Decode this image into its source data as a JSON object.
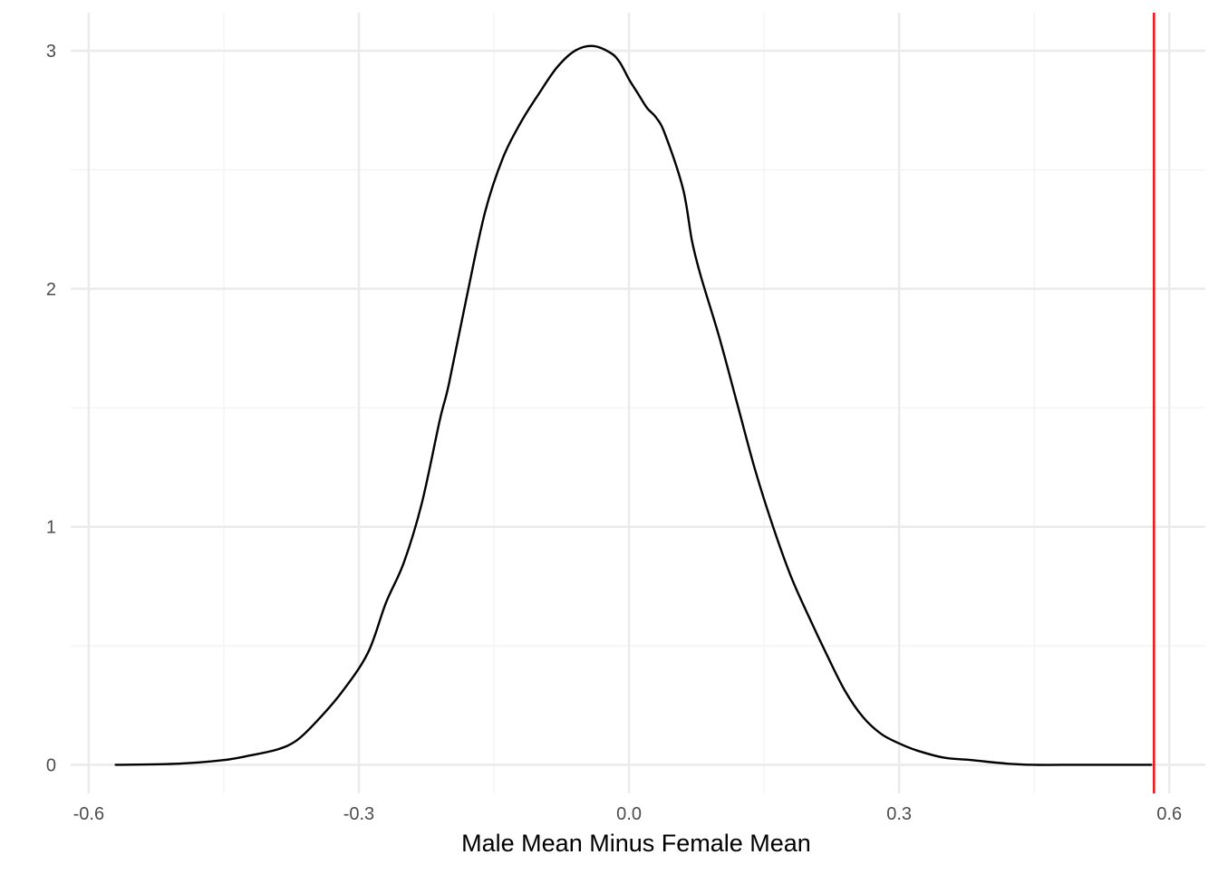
{
  "chart_data": {
    "type": "line",
    "title": "",
    "xlabel": "Male Mean Minus Female Mean",
    "ylabel": "",
    "xlim": [
      -0.62,
      0.64
    ],
    "ylim": [
      -0.12,
      3.16
    ],
    "x_ticks": [
      -0.6,
      -0.3,
      0.0,
      0.3,
      0.6
    ],
    "x_tick_labels": [
      "-0.6",
      "-0.3",
      "0.0",
      "0.3",
      "0.6"
    ],
    "x_minor_ticks": [
      -0.45,
      -0.15,
      0.15,
      0.45
    ],
    "y_ticks": [
      0,
      1,
      2,
      3
    ],
    "y_tick_labels": [
      "0",
      "1",
      "2",
      "3"
    ],
    "y_minor_ticks": [
      0.5,
      1.5,
      2.5
    ],
    "grid": true,
    "legend": "none",
    "colors": {
      "density_line": "#000000",
      "reference_line": "#e41a1c",
      "grid_major": "#ebebeb",
      "grid_minor": "#f2f2f2"
    },
    "series": [
      {
        "x": [
          -0.57,
          -0.5,
          -0.45,
          -0.42,
          -0.39,
          -0.37,
          -0.35,
          -0.32,
          -0.29,
          -0.27,
          -0.25,
          -0.23,
          -0.21,
          -0.2,
          -0.18,
          -0.16,
          -0.14,
          -0.12,
          -0.1,
          -0.08,
          -0.06,
          -0.04,
          -0.02,
          -0.01,
          0.0,
          0.01,
          0.02,
          0.03,
          0.04,
          0.06,
          0.07,
          0.08,
          0.1,
          0.12,
          0.14,
          0.16,
          0.18,
          0.2,
          0.22,
          0.24,
          0.26,
          0.28,
          0.3,
          0.32,
          0.35,
          0.38,
          0.42,
          0.45,
          0.48,
          0.52,
          0.56,
          0.58
        ],
        "y": [
          0.0,
          0.005,
          0.02,
          0.04,
          0.065,
          0.1,
          0.17,
          0.3,
          0.47,
          0.68,
          0.85,
          1.1,
          1.45,
          1.6,
          1.97,
          2.32,
          2.55,
          2.7,
          2.82,
          2.93,
          3.0,
          3.02,
          2.99,
          2.95,
          2.88,
          2.82,
          2.76,
          2.72,
          2.65,
          2.42,
          2.2,
          2.05,
          1.8,
          1.52,
          1.24,
          1.0,
          0.79,
          0.62,
          0.46,
          0.31,
          0.2,
          0.13,
          0.09,
          0.06,
          0.03,
          0.02,
          0.005,
          0.0,
          0.0,
          0.0,
          0.0,
          0.0
        ]
      }
    ],
    "annotations": [
      {
        "type": "vertical-line",
        "x": 0.583
      }
    ]
  }
}
